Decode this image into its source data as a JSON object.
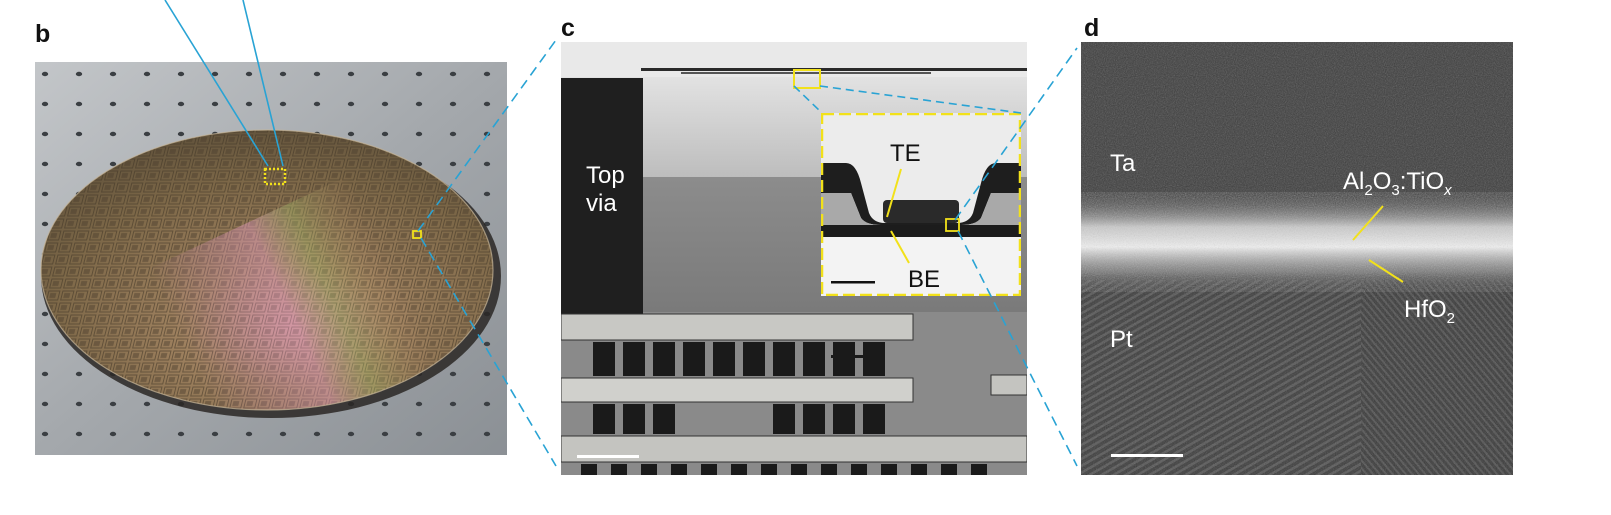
{
  "panels": {
    "b": {
      "letter": "b"
    },
    "c": {
      "letter": "c",
      "label_top_via": "Top\nvia",
      "inset": {
        "label_te": "TE",
        "label_be": "BE"
      }
    },
    "d": {
      "letter": "d",
      "label_ta": "Ta",
      "label_pt": "Pt",
      "label_alo_base1": "Al",
      "label_alo_sub1": "2",
      "label_alo_base2": "O",
      "label_alo_sub2": "3",
      "label_alo_base3": ":TiO",
      "label_alo_sub3": "x",
      "label_hfo_base": "HfO",
      "label_hfo_sub": "2"
    }
  },
  "colors": {
    "callout_line": "#29a3d4",
    "highlight_yellow": "#f2e11a",
    "plate": "#9fa4a8",
    "wafer": "#8a7458"
  }
}
